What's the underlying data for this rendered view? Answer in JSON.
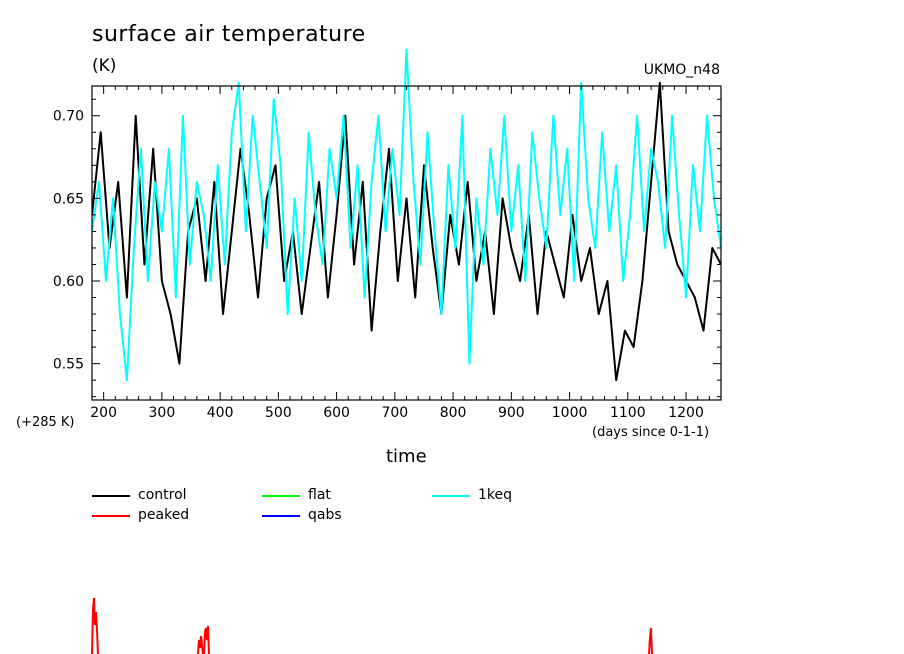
{
  "chart_data": {
    "type": "line",
    "title": "surface air temperature",
    "units": "(K)",
    "model": "UKMO_n48",
    "y_offset_label": "(+285 K)",
    "xlabel": "time",
    "xlabel_note": "(days since 0-1-1)",
    "xlim": [
      180,
      1260
    ],
    "ylim": [
      0.528,
      0.718
    ],
    "x_ticks": [
      200,
      300,
      400,
      500,
      600,
      700,
      800,
      900,
      1000,
      1100,
      1200
    ],
    "y_ticks": [
      0.55,
      0.6,
      0.65,
      0.7
    ],
    "y_tick_labels": [
      "0.55",
      "0.60",
      "0.65",
      "0.70"
    ],
    "legend_placement": "below chart",
    "series": [
      {
        "name": "control",
        "color": "#000000",
        "x": [
          180,
          195,
          210,
          225,
          240,
          255,
          270,
          285,
          300,
          315,
          330,
          345,
          360,
          375,
          390,
          405,
          420,
          435,
          450,
          465,
          480,
          495,
          510,
          525,
          540,
          555,
          570,
          585,
          600,
          615,
          630,
          645,
          660,
          675,
          690,
          705,
          720,
          735,
          750,
          765,
          780,
          795,
          810,
          825,
          840,
          855,
          870,
          885,
          900,
          915,
          930,
          945,
          960,
          975,
          990,
          1005,
          1020,
          1035,
          1050,
          1065,
          1080,
          1095,
          1110,
          1125,
          1140,
          1155,
          1170,
          1185,
          1200,
          1215,
          1230,
          1245,
          1260
        ],
        "values": [
          0.64,
          0.69,
          0.62,
          0.66,
          0.59,
          0.7,
          0.61,
          0.68,
          0.6,
          0.58,
          0.55,
          0.63,
          0.65,
          0.6,
          0.66,
          0.58,
          0.63,
          0.68,
          0.64,
          0.59,
          0.65,
          0.67,
          0.6,
          0.63,
          0.58,
          0.62,
          0.66,
          0.59,
          0.64,
          0.7,
          0.61,
          0.66,
          0.57,
          0.63,
          0.68,
          0.6,
          0.65,
          0.59,
          0.67,
          0.62,
          0.58,
          0.64,
          0.61,
          0.66,
          0.6,
          0.63,
          0.58,
          0.65,
          0.62,
          0.6,
          0.64,
          0.58,
          0.63,
          0.61,
          0.59,
          0.64,
          0.6,
          0.62,
          0.58,
          0.6,
          0.54,
          0.57,
          0.56,
          0.6,
          0.66,
          0.72,
          0.63,
          0.61,
          0.6,
          0.59,
          0.57,
          0.62,
          0.61
        ]
      },
      {
        "name": "1keq",
        "color": "#00ffff",
        "x": [
          180,
          192,
          204,
          216,
          228,
          240,
          252,
          264,
          276,
          288,
          300,
          312,
          324,
          336,
          348,
          360,
          372,
          384,
          396,
          408,
          420,
          432,
          444,
          456,
          468,
          480,
          492,
          504,
          516,
          528,
          540,
          552,
          564,
          576,
          588,
          600,
          612,
          624,
          636,
          648,
          660,
          672,
          684,
          696,
          708,
          720,
          732,
          744,
          756,
          768,
          780,
          792,
          804,
          816,
          828,
          840,
          852,
          864,
          876,
          888,
          900,
          912,
          924,
          936,
          948,
          960,
          972,
          984,
          996,
          1008,
          1020,
          1032,
          1044,
          1056,
          1068,
          1080,
          1092,
          1104,
          1116,
          1128,
          1140,
          1152,
          1164,
          1176,
          1188,
          1200,
          1212,
          1224,
          1236,
          1248,
          1260
        ],
        "values": [
          0.63,
          0.66,
          0.6,
          0.65,
          0.58,
          0.54,
          0.62,
          0.68,
          0.6,
          0.66,
          0.63,
          0.68,
          0.59,
          0.7,
          0.61,
          0.66,
          0.64,
          0.6,
          0.67,
          0.61,
          0.69,
          0.72,
          0.63,
          0.7,
          0.66,
          0.62,
          0.71,
          0.67,
          0.58,
          0.65,
          0.6,
          0.69,
          0.64,
          0.61,
          0.68,
          0.65,
          0.7,
          0.62,
          0.67,
          0.59,
          0.66,
          0.7,
          0.63,
          0.68,
          0.64,
          0.74,
          0.66,
          0.61,
          0.69,
          0.63,
          0.58,
          0.67,
          0.62,
          0.7,
          0.55,
          0.65,
          0.61,
          0.68,
          0.64,
          0.7,
          0.63,
          0.67,
          0.6,
          0.69,
          0.65,
          0.62,
          0.7,
          0.64,
          0.68,
          0.6,
          0.72,
          0.65,
          0.62,
          0.69,
          0.63,
          0.67,
          0.6,
          0.64,
          0.7,
          0.63,
          0.68,
          0.66,
          0.62,
          0.7,
          0.64,
          0.59,
          0.67,
          0.63,
          0.7,
          0.65,
          0.62
        ]
      },
      {
        "name": "peaked",
        "color": "#ff0000",
        "x": [],
        "values": []
      },
      {
        "name": "flat",
        "color": "#00ff00",
        "x": [],
        "values": []
      },
      {
        "name": "qabs",
        "color": "#0000ff",
        "x": [],
        "values": []
      }
    ]
  }
}
